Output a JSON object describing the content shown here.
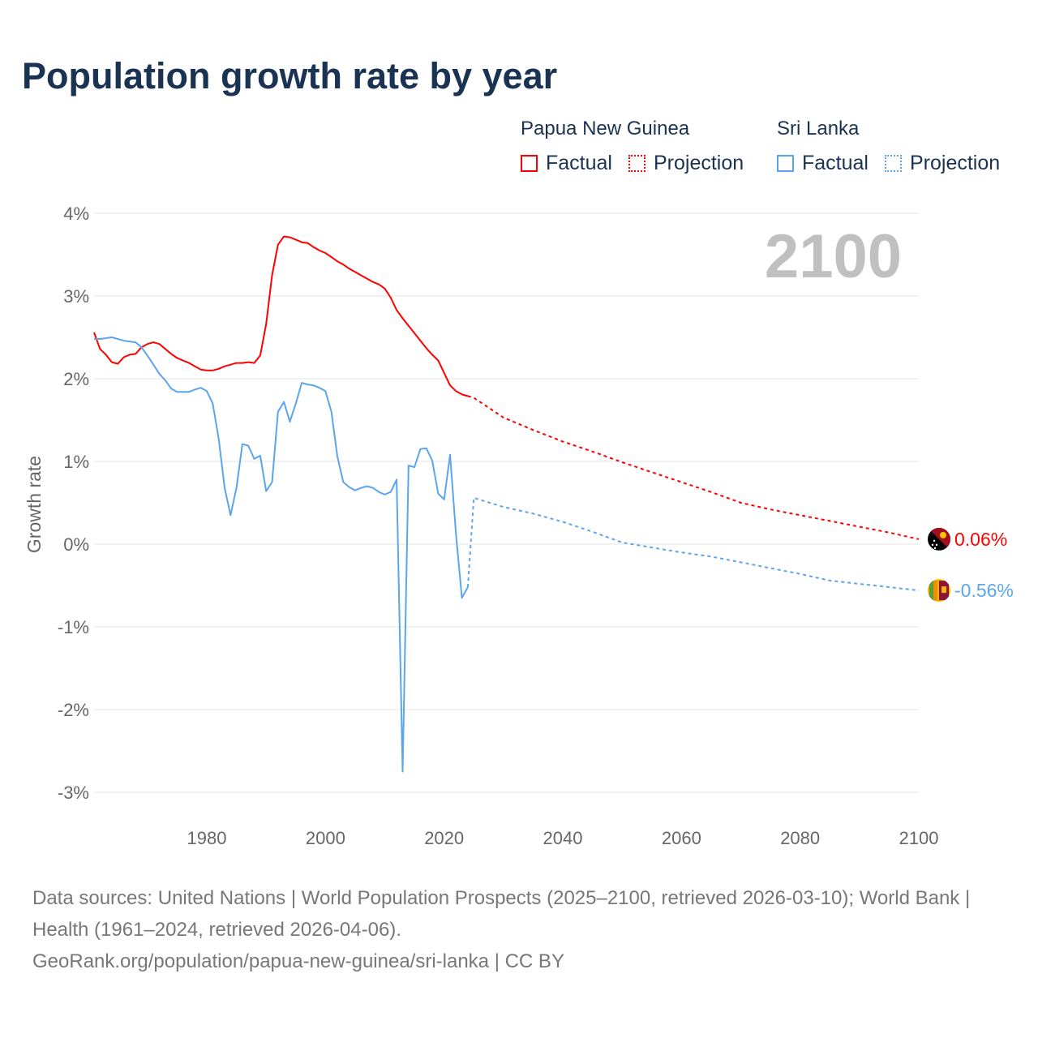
{
  "title": "Population growth rate by year",
  "legend": {
    "groups": [
      {
        "name": "Papua New Guinea",
        "color": "#ff0000",
        "factual": "Factual",
        "projection": "Projection"
      },
      {
        "name": "Sri Lanka",
        "color": "#5aa5ee",
        "factual": "Factual",
        "projection": "Projection"
      }
    ]
  },
  "year_label": "2100",
  "footer": {
    "sources": "Data sources: United Nations | World Population Prospects (2025–2100, retrieved 2026-03-10); World Bank | Health (1961–2024, retrieved 2026-04-06).",
    "credit": "GeoRank.org/population/papua-new-guinea/sri-lanka | CC BY"
  },
  "chart_data": {
    "type": "line",
    "title": "Population growth rate by year",
    "xlabel": "",
    "ylabel": "Growth rate",
    "xlim": [
      1961,
      2100
    ],
    "ylim": [
      -3,
      4
    ],
    "xticks": [
      1980,
      2000,
      2020,
      2040,
      2060,
      2080,
      2100
    ],
    "yticks": [
      4,
      3,
      2,
      1,
      0,
      -1,
      -2,
      -3
    ],
    "ytick_labels": [
      "4%",
      "3%",
      "2%",
      "1%",
      "0%",
      "-1%",
      "-2%",
      "-3%"
    ],
    "grid": true,
    "series": [
      {
        "name": "Papua New Guinea",
        "color": "#ff0000",
        "end_label": "0.06%",
        "factual": {
          "x": [
            1961,
            1962,
            1963,
            1964,
            1965,
            1966,
            1967,
            1968,
            1969,
            1970,
            1971,
            1972,
            1973,
            1974,
            1975,
            1976,
            1977,
            1978,
            1979,
            1980,
            1981,
            1982,
            1983,
            1984,
            1985,
            1986,
            1987,
            1988,
            1989,
            1990,
            1991,
            1992,
            1993,
            1994,
            1995,
            1996,
            1997,
            1998,
            1999,
            2000,
            2001,
            2002,
            2003,
            2004,
            2005,
            2006,
            2007,
            2008,
            2009,
            2010,
            2011,
            2012,
            2013,
            2014,
            2015,
            2016,
            2017,
            2018,
            2019,
            2020,
            2021,
            2022,
            2023,
            2024
          ],
          "y": [
            2.56,
            2.36,
            2.29,
            2.2,
            2.18,
            2.26,
            2.29,
            2.3,
            2.38,
            2.42,
            2.44,
            2.42,
            2.36,
            2.3,
            2.25,
            2.22,
            2.19,
            2.15,
            2.11,
            2.1,
            2.1,
            2.12,
            2.15,
            2.17,
            2.19,
            2.19,
            2.2,
            2.19,
            2.28,
            2.66,
            3.25,
            3.62,
            3.72,
            3.71,
            3.68,
            3.65,
            3.64,
            3.59,
            3.55,
            3.52,
            3.47,
            3.42,
            3.38,
            3.33,
            3.29,
            3.25,
            3.21,
            3.17,
            3.14,
            3.09,
            2.98,
            2.83,
            2.73,
            2.64,
            2.55,
            2.46,
            2.37,
            2.29,
            2.22,
            2.07,
            1.92,
            1.85,
            1.81,
            1.79
          ]
        },
        "projection": {
          "x": [
            2024,
            2025,
            2030,
            2035,
            2040,
            2045,
            2050,
            2055,
            2060,
            2065,
            2070,
            2075,
            2080,
            2085,
            2090,
            2095,
            2100
          ],
          "y": [
            1.79,
            1.77,
            1.53,
            1.38,
            1.24,
            1.12,
            0.99,
            0.87,
            0.75,
            0.63,
            0.5,
            0.42,
            0.35,
            0.28,
            0.21,
            0.14,
            0.06
          ]
        }
      },
      {
        "name": "Sri Lanka",
        "color": "#5aa5ee",
        "end_label": "-0.56%",
        "factual": {
          "x": [
            1961,
            1962,
            1963,
            1964,
            1965,
            1966,
            1967,
            1968,
            1969,
            1970,
            1971,
            1972,
            1973,
            1974,
            1975,
            1976,
            1977,
            1978,
            1979,
            1980,
            1981,
            1982,
            1983,
            1984,
            1985,
            1986,
            1987,
            1988,
            1989,
            1990,
            1991,
            1992,
            1993,
            1994,
            1995,
            1996,
            1997,
            1998,
            1999,
            2000,
            2001,
            2002,
            2003,
            2004,
            2005,
            2006,
            2007,
            2008,
            2009,
            2010,
            2011,
            2012,
            2013,
            2014,
            2015,
            2016,
            2017,
            2018,
            2019,
            2020,
            2021,
            2022,
            2023,
            2024
          ],
          "y": [
            2.48,
            2.48,
            2.49,
            2.5,
            2.48,
            2.46,
            2.45,
            2.44,
            2.38,
            2.28,
            2.17,
            2.06,
            1.98,
            1.88,
            1.84,
            1.84,
            1.84,
            1.87,
            1.89,
            1.85,
            1.7,
            1.28,
            0.68,
            0.35,
            0.68,
            1.21,
            1.19,
            1.03,
            1.07,
            0.64,
            0.75,
            1.6,
            1.72,
            1.48,
            1.7,
            1.95,
            1.93,
            1.92,
            1.89,
            1.85,
            1.6,
            1.06,
            0.75,
            0.69,
            0.65,
            0.68,
            0.7,
            0.68,
            0.63,
            0.6,
            0.63,
            0.78,
            -2.75,
            0.95,
            0.93,
            1.15,
            1.16,
            1.01,
            0.61,
            0.54,
            1.08,
            0.12,
            -0.65,
            -0.52
          ]
        },
        "projection": {
          "x": [
            2024,
            2025,
            2030,
            2035,
            2040,
            2045,
            2050,
            2055,
            2060,
            2065,
            2070,
            2075,
            2080,
            2085,
            2090,
            2095,
            2100
          ],
          "y": [
            -0.52,
            0.56,
            0.45,
            0.37,
            0.27,
            0.15,
            0.02,
            -0.04,
            -0.1,
            -0.15,
            -0.22,
            -0.29,
            -0.36,
            -0.44,
            -0.48,
            -0.52,
            -0.56
          ]
        }
      }
    ]
  }
}
